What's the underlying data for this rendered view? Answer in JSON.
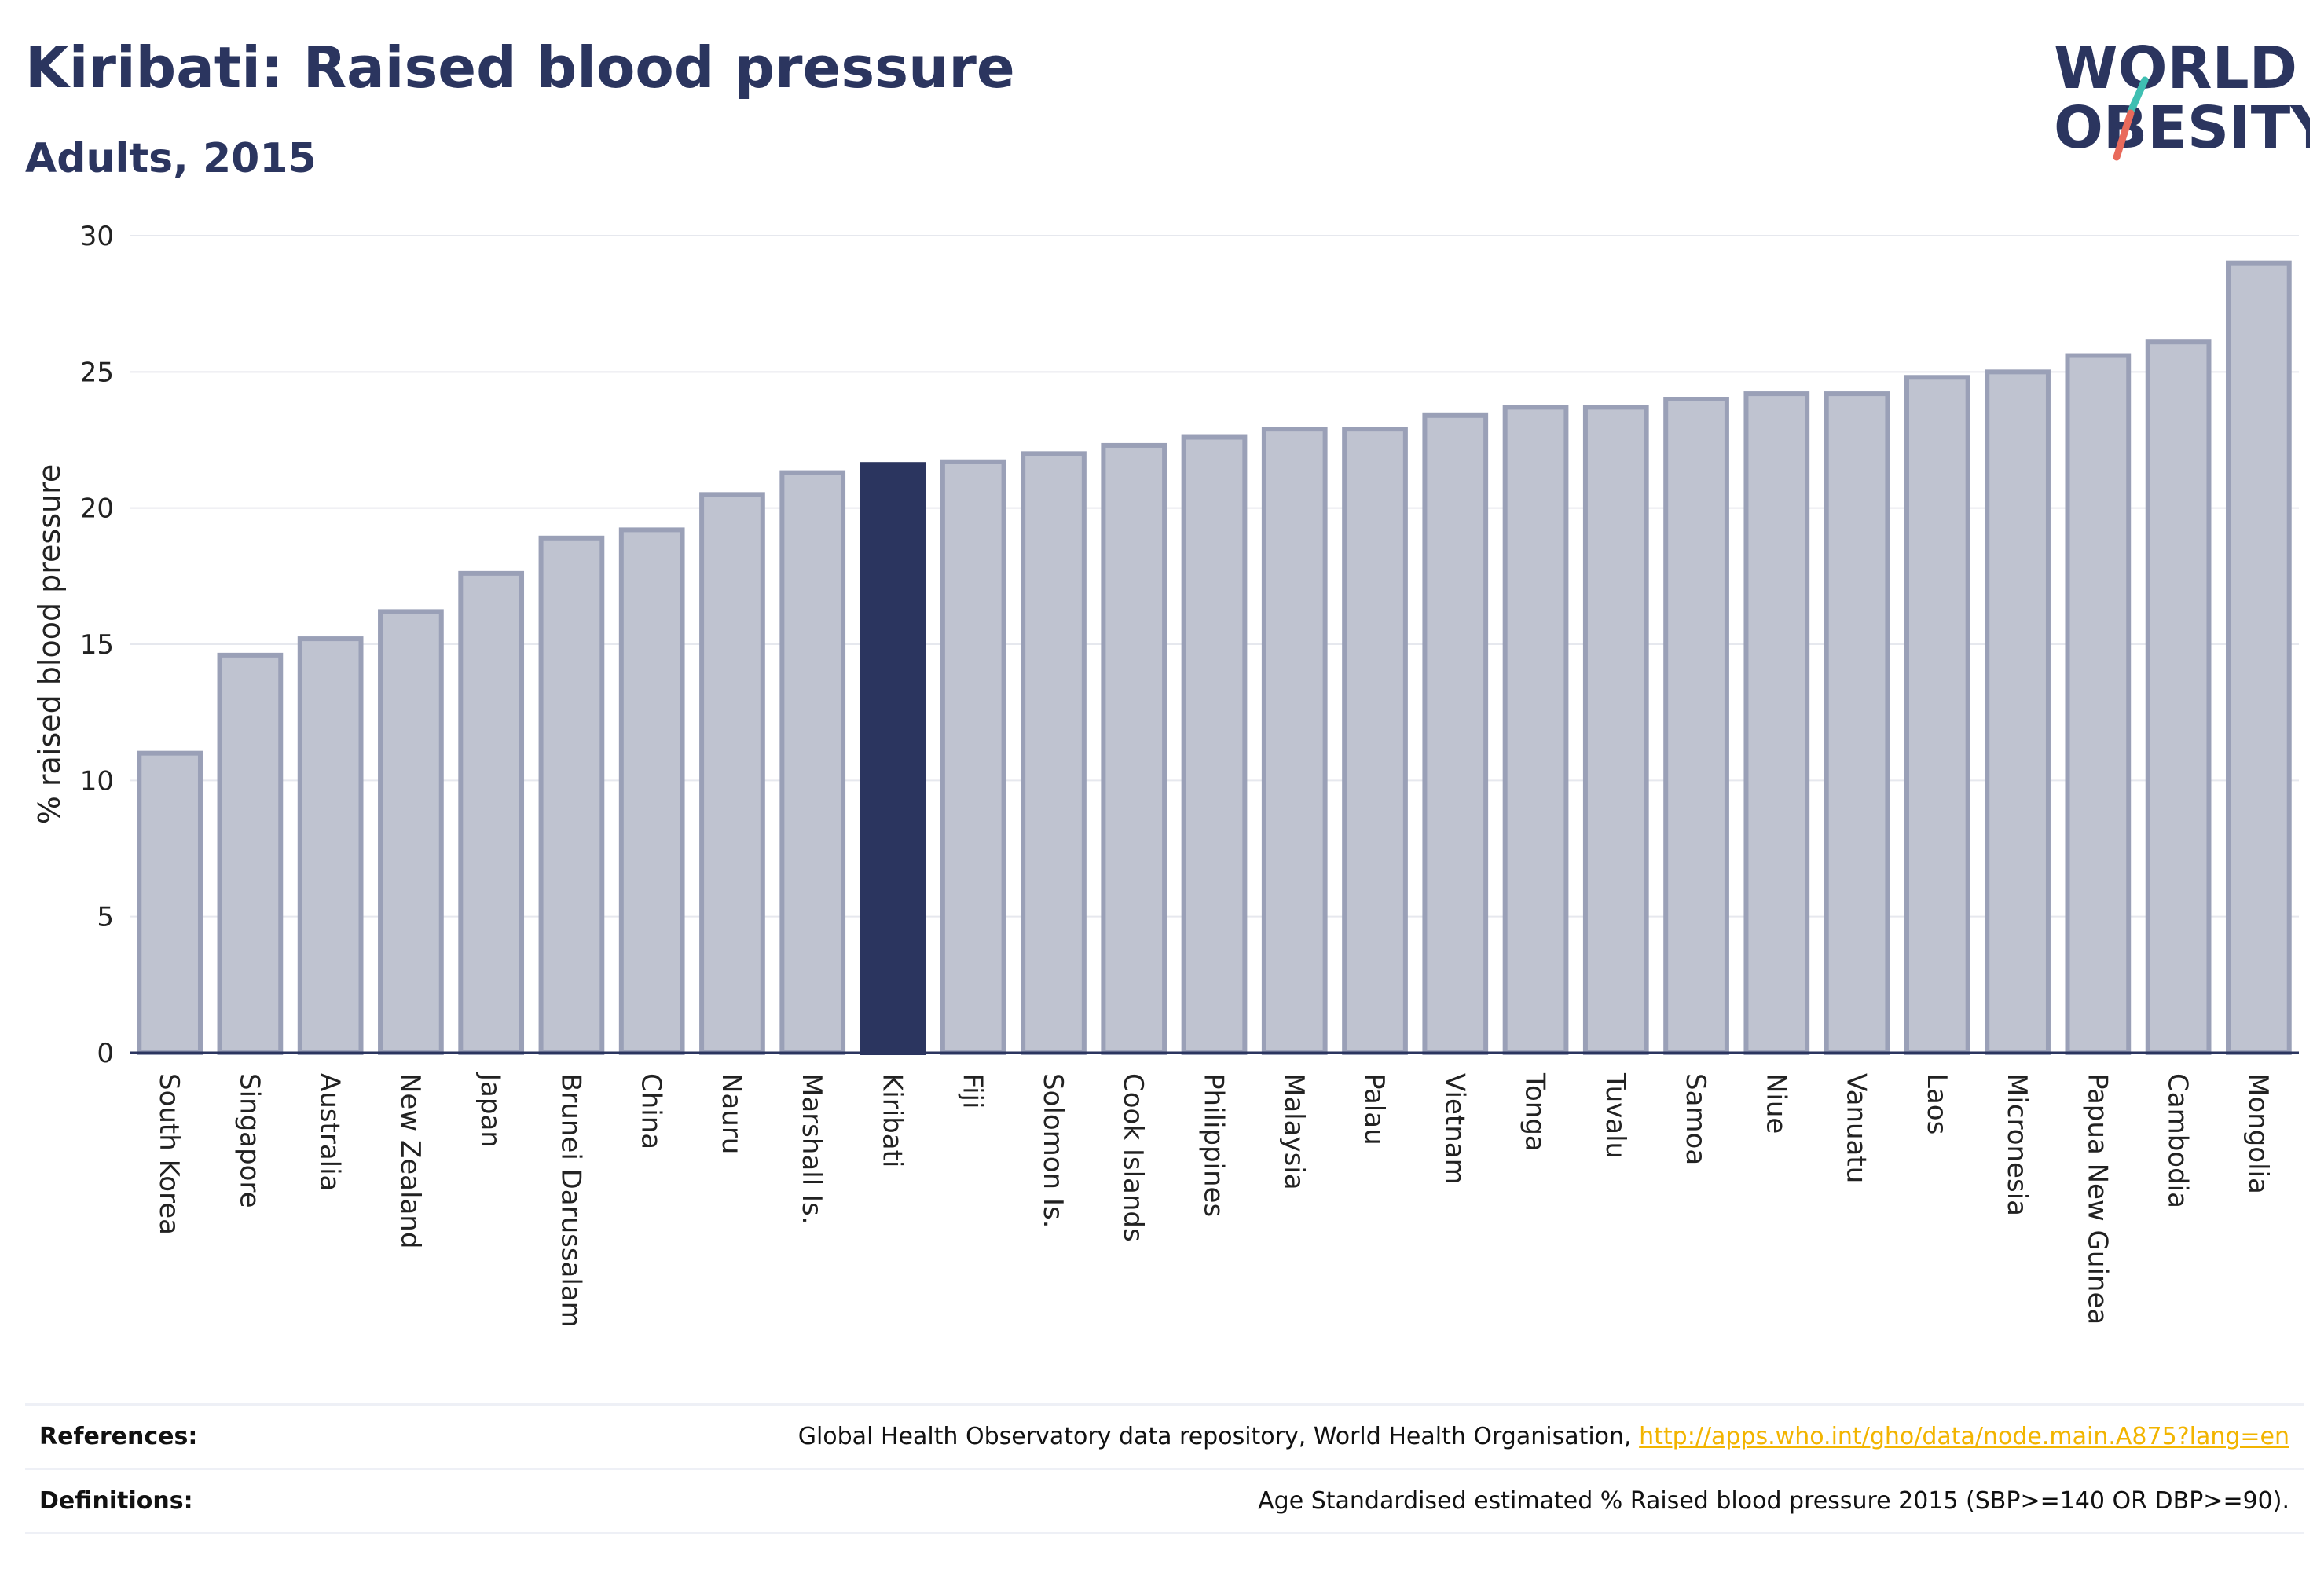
{
  "header": {
    "title": "Kiribati: Raised blood pressure",
    "subtitle": "Adults, 2015"
  },
  "logo": {
    "line1": "WORLD",
    "line2": "OBESITY"
  },
  "colors": {
    "bar_default": "#bfc3d0",
    "bar_stroke": "#9aa0b7",
    "bar_highlight": "#2b355f",
    "gridline": "#e6e8ee",
    "axis_line": "#2b355f",
    "logo_slash_top": "#3fbfb2",
    "logo_slash_bottom": "#e96a5b"
  },
  "chart_data": {
    "type": "bar",
    "title": "Kiribati: Raised blood pressure",
    "subtitle": "Adults, 2015",
    "xlabel": "",
    "ylabel": "% raised blood pressure",
    "ylim": [
      0,
      30
    ],
    "yticks": [
      0,
      5,
      10,
      15,
      20,
      25,
      30
    ],
    "grid": true,
    "highlight": "Kiribati",
    "categories": [
      "South Korea",
      "Singapore",
      "Australia",
      "New Zealand",
      "Japan",
      "Brunei Darussalam",
      "China",
      "Nauru",
      "Marshall Is.",
      "Kiribati",
      "Fiji",
      "Solomon Is.",
      "Cook Islands",
      "Philippines",
      "Malaysia",
      "Palau",
      "Vietnam",
      "Tonga",
      "Tuvalu",
      "Samoa",
      "Niue",
      "Vanuatu",
      "Laos",
      "Micronesia",
      "Papua New Guinea",
      "Cambodia",
      "Mongolia"
    ],
    "values": [
      11.0,
      14.6,
      15.2,
      16.2,
      17.6,
      18.9,
      19.2,
      20.5,
      21.3,
      21.6,
      21.7,
      22.0,
      22.3,
      22.6,
      22.9,
      22.9,
      23.4,
      23.7,
      23.7,
      24.0,
      24.2,
      24.2,
      24.8,
      25.0,
      25.6,
      26.1,
      29.0
    ]
  },
  "footer": {
    "references_label": "References:",
    "references_text": "Global Health Observatory data repository, World Health Organisation,",
    "references_link": "http://apps.who.int/gho/data/node.main.A875?lang=en",
    "definitions_label": "Definitions:",
    "definitions_text": "Age Standardised estimated % Raised blood pressure 2015 (SBP>=140 OR DBP>=90)."
  }
}
